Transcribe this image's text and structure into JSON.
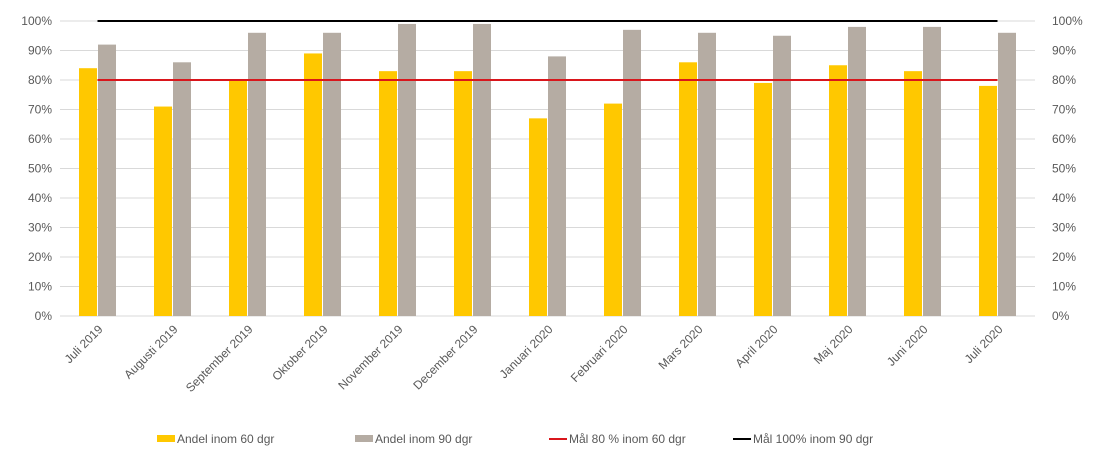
{
  "chart_data": {
    "type": "bar",
    "categories": [
      "Juli 2019",
      "Augusti 2019",
      "September 2019",
      "Oktober 2019",
      "November 2019",
      "December 2019",
      "Januari 2020",
      "Februari 2020",
      "Mars 2020",
      "April 2020",
      "Maj 2020",
      "Juni 2020",
      "Juli 2020"
    ],
    "series": [
      {
        "name": "Andel inom 60 dgr",
        "type": "bar",
        "color": "#ffc800",
        "values": [
          84,
          71,
          80,
          89,
          83,
          83,
          67,
          72,
          86,
          79,
          85,
          83,
          78
        ]
      },
      {
        "name": "Andel inom 90 dgr",
        "type": "bar",
        "color": "#b5aca3",
        "values": [
          92,
          86,
          96,
          96,
          99,
          99,
          88,
          97,
          96,
          95,
          98,
          98,
          96
        ]
      },
      {
        "name": "Mål 80 % inom 60 dgr",
        "type": "line",
        "color": "#d9161c",
        "values": [
          80,
          80,
          80,
          80,
          80,
          80,
          80,
          80,
          80,
          80,
          80,
          80,
          80
        ]
      },
      {
        "name": "Mål 100% inom 90 dgr",
        "type": "line",
        "color": "#000000",
        "values": [
          100,
          100,
          100,
          100,
          100,
          100,
          100,
          100,
          100,
          100,
          100,
          100,
          100
        ]
      }
    ],
    "y_ticks": [
      "0%",
      "10%",
      "20%",
      "30%",
      "40%",
      "50%",
      "60%",
      "70%",
      "80%",
      "90%",
      "100%"
    ],
    "ylim": [
      0,
      100
    ],
    "secondary_y_axis": true,
    "grid": true,
    "gridline_color": "#d9d9d9",
    "legend_position": "bottom",
    "title": "",
    "xlabel": "",
    "ylabel": ""
  }
}
